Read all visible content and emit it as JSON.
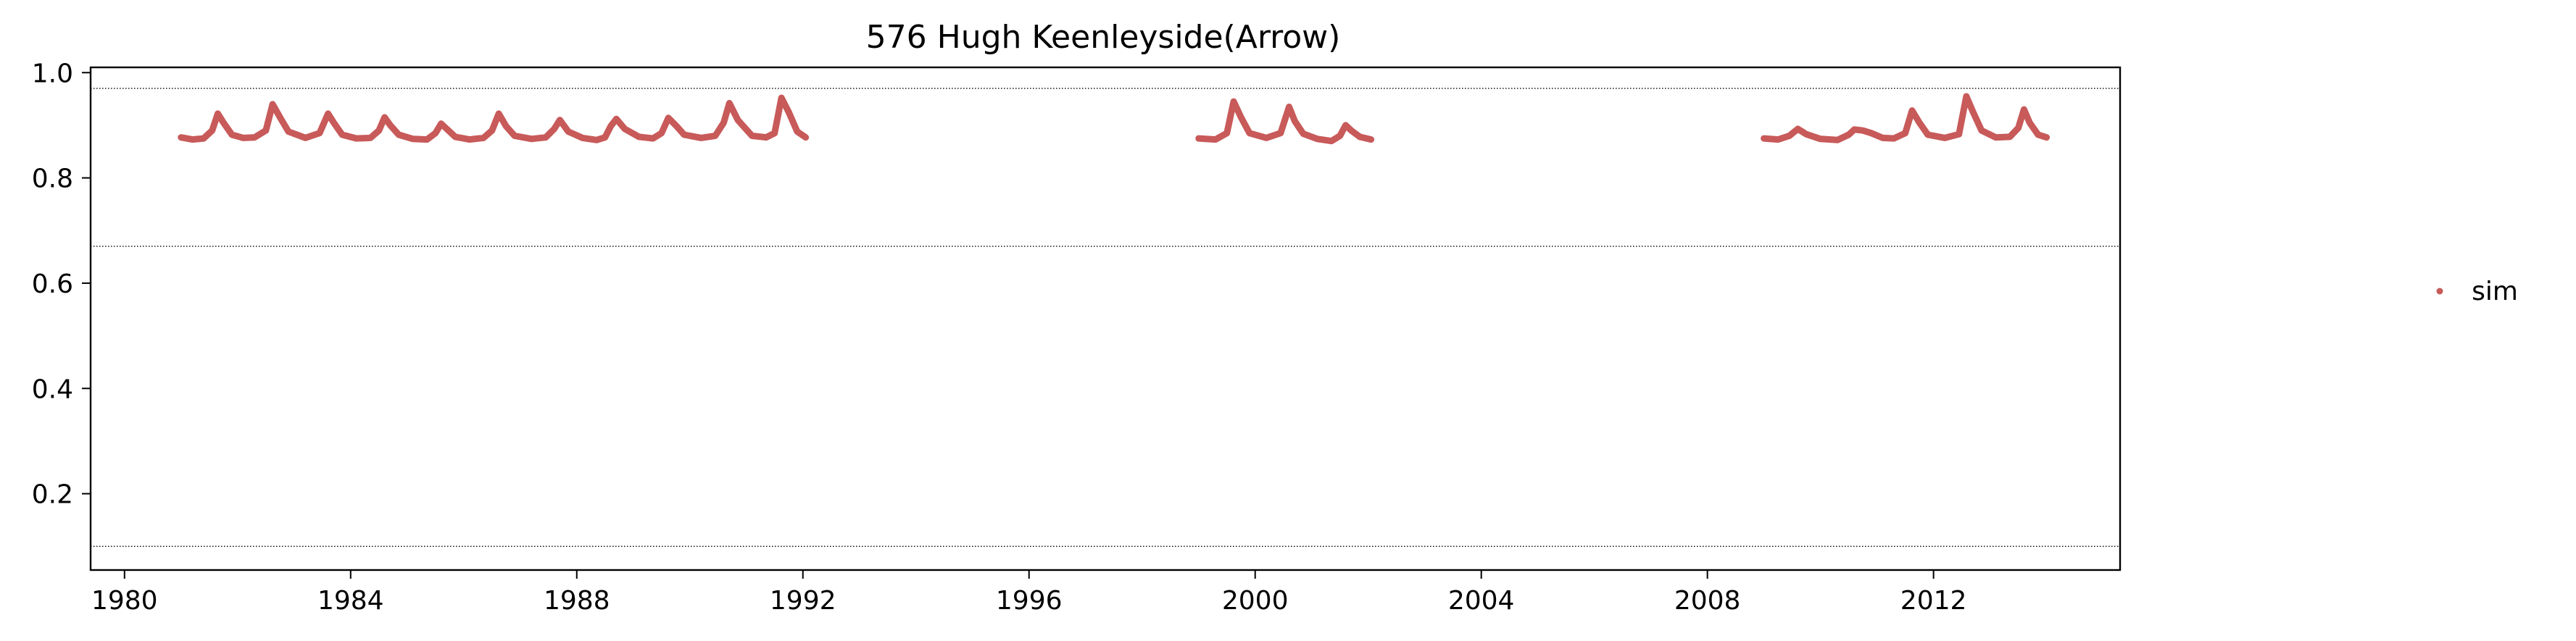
{
  "chart_data": {
    "type": "scatter",
    "title": "576  Hugh Keenleyside(Arrow)",
    "xlabel": "",
    "ylabel": "",
    "xlim": [
      1979.4,
      2015.3
    ],
    "ylim": [
      0.055,
      1.01
    ],
    "x_ticks": [
      {
        "value": 1980,
        "label": "1980"
      },
      {
        "value": 1984,
        "label": "1984"
      },
      {
        "value": 1988,
        "label": "1988"
      },
      {
        "value": 1992,
        "label": "1992"
      },
      {
        "value": 1996,
        "label": "1996"
      },
      {
        "value": 2000,
        "label": "2000"
      },
      {
        "value": 2004,
        "label": "2004"
      },
      {
        "value": 2008,
        "label": "2008"
      },
      {
        "value": 2012,
        "label": "2012"
      }
    ],
    "y_ticks": [
      {
        "value": 0.2,
        "label": "0.2"
      },
      {
        "value": 0.4,
        "label": "0.4"
      },
      {
        "value": 0.6,
        "label": "0.6"
      },
      {
        "value": 0.8,
        "label": "0.8"
      },
      {
        "value": 1.0,
        "label": "1.0"
      }
    ],
    "reference_lines": [
      0.97,
      0.67,
      0.1
    ],
    "legend": {
      "position": "right",
      "entries": [
        {
          "name": "sim",
          "color": "#c85a5a",
          "marker": "dot"
        }
      ]
    },
    "series": [
      {
        "name": "sim",
        "color": "#c85a5a",
        "segments": [
          {
            "x": [
              1981.0,
              1981.2,
              1981.4,
              1981.55,
              1981.65,
              1981.75,
              1981.9,
              1982.1,
              1982.3,
              1982.5,
              1982.62,
              1982.75,
              1982.9,
              1983.2,
              1983.45,
              1983.6,
              1983.7,
              1983.85,
              1984.1,
              1984.35,
              1984.5,
              1984.6,
              1984.7,
              1984.85,
              1985.1,
              1985.35,
              1985.5,
              1985.6,
              1985.7,
              1985.85,
              1986.1,
              1986.35,
              1986.5,
              1986.62,
              1986.75,
              1986.9,
              1987.2,
              1987.45,
              1987.6,
              1987.7,
              1987.85,
              1988.1,
              1988.35,
              1988.5,
              1988.6,
              1988.7,
              1988.85,
              1989.1,
              1989.35,
              1989.5,
              1989.62,
              1989.75,
              1989.9,
              1990.2,
              1990.45,
              1990.6,
              1990.7,
              1990.85,
              1991.1,
              1991.35,
              1991.5,
              1991.62,
              1991.75,
              1991.9,
              1992.05
            ],
            "y": [
              0.877,
              0.873,
              0.875,
              0.89,
              0.922,
              0.905,
              0.882,
              0.876,
              0.877,
              0.89,
              0.94,
              0.915,
              0.888,
              0.876,
              0.885,
              0.922,
              0.905,
              0.882,
              0.875,
              0.876,
              0.89,
              0.915,
              0.9,
              0.882,
              0.874,
              0.873,
              0.885,
              0.903,
              0.893,
              0.878,
              0.873,
              0.876,
              0.89,
              0.922,
              0.898,
              0.88,
              0.874,
              0.877,
              0.893,
              0.91,
              0.888,
              0.876,
              0.872,
              0.877,
              0.898,
              0.912,
              0.893,
              0.878,
              0.875,
              0.885,
              0.914,
              0.9,
              0.882,
              0.876,
              0.88,
              0.905,
              0.942,
              0.91,
              0.88,
              0.877,
              0.885,
              0.952,
              0.925,
              0.888,
              0.877
            ]
          },
          {
            "x": [
              1999.0,
              1999.3,
              1999.5,
              1999.62,
              1999.75,
              1999.9,
              2000.2,
              2000.45,
              2000.6,
              2000.7,
              2000.85,
              2001.1,
              2001.35,
              2001.5,
              2001.6,
              2001.7,
              2001.85,
              2002.05
            ],
            "y": [
              0.875,
              0.873,
              0.885,
              0.945,
              0.915,
              0.885,
              0.876,
              0.885,
              0.935,
              0.908,
              0.884,
              0.874,
              0.87,
              0.88,
              0.9,
              0.89,
              0.878,
              0.873
            ]
          },
          {
            "x": [
              2009.0,
              2009.25,
              2009.45,
              2009.6,
              2009.75,
              2010.0,
              2010.3,
              2010.5,
              2010.6,
              2010.75,
              2010.9,
              2011.1,
              2011.3,
              2011.5,
              2011.62,
              2011.75,
              2011.9,
              2012.2,
              2012.45,
              2012.58,
              2012.7,
              2012.85,
              2013.1,
              2013.35,
              2013.5,
              2013.6,
              2013.7,
              2013.85,
              2014.0
            ],
            "y": [
              0.875,
              0.873,
              0.88,
              0.893,
              0.883,
              0.874,
              0.872,
              0.882,
              0.892,
              0.89,
              0.885,
              0.876,
              0.875,
              0.885,
              0.928,
              0.905,
              0.882,
              0.876,
              0.883,
              0.955,
              0.925,
              0.89,
              0.877,
              0.878,
              0.895,
              0.93,
              0.905,
              0.882,
              0.877
            ]
          }
        ]
      }
    ]
  }
}
